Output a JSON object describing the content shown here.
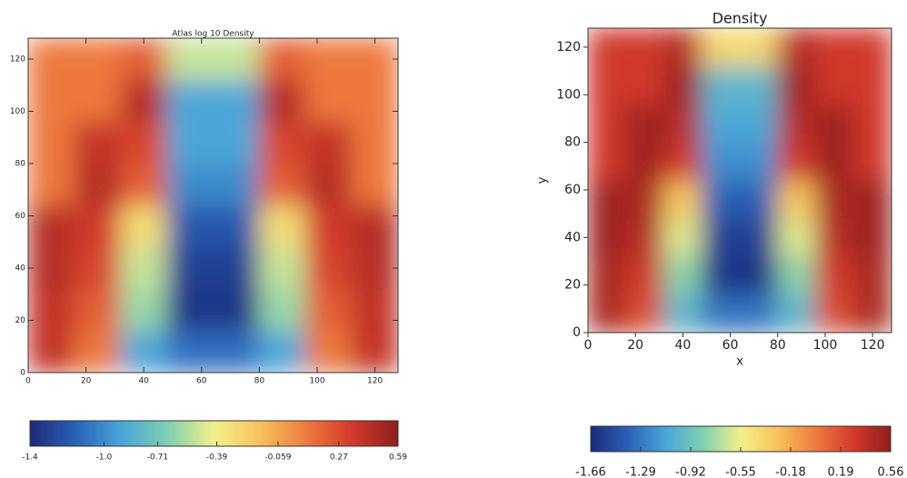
{
  "chart_data": [
    {
      "type": "heatmap",
      "title": "Atlas log 10 Density",
      "xbins": [
        0,
        16,
        32,
        48,
        64,
        80,
        96,
        112,
        128
      ],
      "ybins": [
        0,
        16,
        32,
        48,
        64,
        80,
        96,
        112,
        128
      ],
      "z": [
        [
          0.4,
          0.1,
          -0.9,
          -1.1,
          -1.1,
          -0.9,
          0.1,
          0.4
        ],
        [
          0.4,
          0.2,
          -0.6,
          -1.35,
          -1.35,
          -0.6,
          0.2,
          0.4
        ],
        [
          0.45,
          0.3,
          -0.5,
          -1.3,
          -1.3,
          -0.5,
          0.3,
          0.45
        ],
        [
          0.45,
          0.35,
          -0.3,
          -1.2,
          -1.2,
          -0.3,
          0.35,
          0.45
        ],
        [
          0.1,
          0.45,
          0.2,
          -1.0,
          -1.0,
          0.2,
          0.45,
          0.1
        ],
        [
          0.1,
          0.4,
          0.3,
          -0.9,
          -0.9,
          0.3,
          0.4,
          0.1
        ],
        [
          0.1,
          0.1,
          0.45,
          -0.9,
          -0.9,
          0.45,
          0.1,
          0.1
        ],
        [
          0.1,
          0.1,
          0.2,
          -0.5,
          -0.5,
          0.2,
          0.1,
          0.1
        ]
      ],
      "xlim": [
        0,
        128
      ],
      "ylim": [
        0,
        128
      ],
      "xticks": [
        0,
        20,
        40,
        60,
        80,
        100,
        120
      ],
      "yticks": [
        0,
        20,
        40,
        60,
        80,
        100,
        120
      ],
      "zlim": [
        -1.4,
        0.59
      ],
      "colorbar_ticks": [
        -1.4,
        {
          "value": -1,
          "label": "-1.0"
        },
        -0.71,
        -0.39,
        -0.059,
        0.27,
        0.59
      ],
      "colorscale": [
        "#1c2a7a",
        "#2a62b8",
        "#4aa6d8",
        "#7fd0b0",
        "#f2f08a",
        "#f7c25c",
        "#ee7a3e",
        "#d43a2a",
        "#8e1e1e"
      ]
    },
    {
      "type": "heatmap",
      "title": "Density",
      "x_label": "x",
      "y_label": "y",
      "xbins": [
        0,
        16,
        32,
        48,
        64,
        80,
        96,
        112,
        128
      ],
      "ybins": [
        0,
        16,
        32,
        48,
        64,
        80,
        96,
        112,
        128
      ],
      "z": [
        [
          0.45,
          0.2,
          -1.0,
          -1.3,
          -1.3,
          -1.0,
          0.2,
          0.45
        ],
        [
          0.45,
          0.3,
          -0.8,
          -1.6,
          -1.6,
          -0.8,
          0.3,
          0.45
        ],
        [
          0.5,
          0.4,
          -0.6,
          -1.55,
          -1.55,
          -0.6,
          0.4,
          0.5
        ],
        [
          0.5,
          0.45,
          -0.3,
          -1.4,
          -1.4,
          -0.3,
          0.45,
          0.5
        ],
        [
          0.3,
          0.5,
          0.3,
          -1.2,
          -1.2,
          0.3,
          0.5,
          0.3
        ],
        [
          0.3,
          0.5,
          0.4,
          -1.1,
          -1.1,
          0.4,
          0.5,
          0.3
        ],
        [
          0.3,
          0.3,
          0.5,
          -1.0,
          -1.0,
          0.5,
          0.3,
          0.3
        ],
        [
          0.3,
          0.3,
          0.4,
          -0.4,
          -0.4,
          0.4,
          0.3,
          0.3
        ]
      ],
      "xlim": [
        0,
        128
      ],
      "ylim": [
        0,
        128
      ],
      "xticks": [
        0,
        20,
        40,
        60,
        80,
        100,
        120
      ],
      "yticks": [
        0,
        20,
        40,
        60,
        80,
        100,
        120
      ],
      "zlim": [
        -1.66,
        0.56
      ],
      "colorbar_ticks": [
        -1.66,
        -1.29,
        -0.92,
        -0.55,
        -0.18,
        0.19,
        0.56
      ],
      "colorscale": [
        "#1c2a7a",
        "#2a62b8",
        "#4aa6d8",
        "#7fd0b0",
        "#f2f08a",
        "#f7c25c",
        "#ee7a3e",
        "#d43a2a",
        "#8e1e1e"
      ]
    }
  ]
}
